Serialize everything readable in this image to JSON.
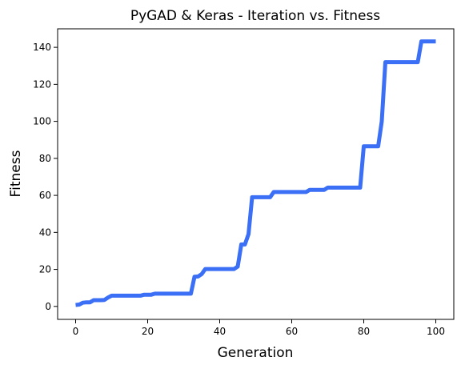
{
  "chart_data": {
    "type": "line",
    "title": "PyGAD & Keras - Iteration vs. Fitness",
    "xlabel": "Generation",
    "ylabel": "Fitness",
    "xlim": [
      -5,
      105
    ],
    "ylim": [
      -7,
      150
    ],
    "xticks": [
      0,
      20,
      40,
      60,
      80,
      100
    ],
    "yticks": [
      0,
      20,
      40,
      60,
      80,
      100,
      120,
      140
    ],
    "grid": false,
    "series": [
      {
        "color": "#3b6ff5",
        "x": [
          0,
          1,
          2,
          3,
          4,
          5,
          6,
          7,
          8,
          9,
          10,
          18,
          19,
          20,
          21,
          22,
          30,
          31,
          32,
          33,
          34,
          35,
          36,
          44,
          45,
          46,
          47,
          48,
          49,
          50,
          54,
          55,
          56,
          64,
          65,
          69,
          70,
          78,
          79,
          80,
          84,
          85,
          86,
          95,
          96,
          100
        ],
        "y": [
          0.8,
          1.0,
          2.0,
          2.2,
          2.2,
          3.4,
          3.4,
          3.4,
          3.5,
          4.8,
          5.8,
          5.8,
          6.3,
          6.3,
          6.3,
          6.9,
          6.9,
          6.9,
          6.9,
          16.0,
          16.2,
          17.5,
          20.2,
          20.2,
          21.5,
          33.5,
          33.5,
          39.0,
          59.0,
          59.0,
          59.0,
          61.8,
          61.8,
          61.8,
          63.0,
          63.0,
          64.2,
          64.2,
          64.2,
          86.5,
          86.5,
          100.0,
          132.0,
          132.0,
          143.2,
          143.2
        ]
      }
    ]
  }
}
